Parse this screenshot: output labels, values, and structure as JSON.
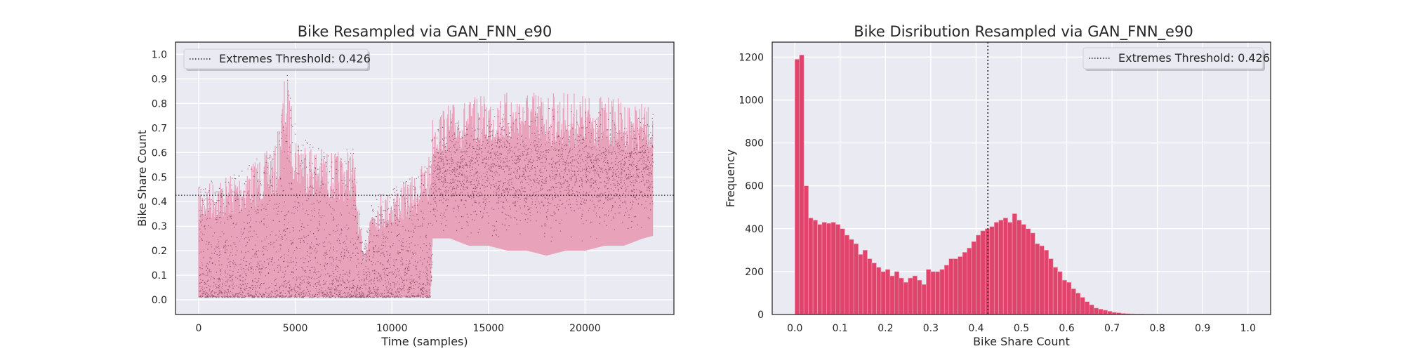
{
  "colors": {
    "axes_bg": "#EAEAF2",
    "grid": "#FFFFFF",
    "line_fill": "#E8A3BB",
    "dot": "#8A4866",
    "bar": "#E0436B",
    "bar_edge": "#F3A3B6",
    "threshold": "#222222"
  },
  "chart_data": [
    {
      "type": "line",
      "title": "Bike Resampled via GAN_FNN_e90",
      "xlabel": "Time (samples)",
      "ylabel": "Bike Share Count",
      "xlim": [
        -1200,
        24600
      ],
      "ylim": [
        -0.06,
        1.05
      ],
      "x_ticks": [
        0,
        5000,
        10000,
        15000,
        20000
      ],
      "x_tick_labels": [
        "0",
        "5000",
        "10000",
        "15000",
        "20000"
      ],
      "y_ticks": [
        0.0,
        0.1,
        0.2,
        0.3,
        0.4,
        0.5,
        0.6,
        0.7,
        0.8,
        0.9,
        1.0
      ],
      "y_tick_labels": [
        "0.0",
        "0.1",
        "0.2",
        "0.3",
        "0.4",
        "0.5",
        "0.6",
        "0.7",
        "0.8",
        "0.9",
        "1.0"
      ],
      "grid": true,
      "legend": {
        "position": "upper-left",
        "entries": [
          "Extremes Threshold: 0.426"
        ]
      },
      "threshold": {
        "orientation": "horizontal",
        "value": 0.426,
        "style": "dotted"
      },
      "series_envelope": {
        "x": [
          0,
          1000,
          2000,
          3000,
          4000,
          4500,
          5000,
          6000,
          7000,
          8000,
          8500,
          9000,
          10000,
          11000,
          12000,
          12100,
          13000,
          14000,
          15000,
          16000,
          17000,
          18000,
          19000,
          20000,
          21000,
          22000,
          23000,
          23500
        ],
        "upper": [
          0.46,
          0.5,
          0.52,
          0.58,
          0.63,
          0.95,
          0.7,
          0.63,
          0.6,
          0.62,
          0.2,
          0.42,
          0.45,
          0.5,
          0.6,
          0.75,
          0.8,
          0.82,
          0.84,
          0.85,
          0.86,
          0.85,
          0.85,
          0.84,
          0.83,
          0.82,
          0.8,
          0.78
        ],
        "lower": [
          0.01,
          0.01,
          0.01,
          0.01,
          0.01,
          0.01,
          0.01,
          0.01,
          0.01,
          0.01,
          0.01,
          0.01,
          0.01,
          0.01,
          0.01,
          0.25,
          0.25,
          0.22,
          0.22,
          0.2,
          0.2,
          0.18,
          0.2,
          0.2,
          0.22,
          0.22,
          0.25,
          0.26
        ]
      }
    },
    {
      "type": "bar",
      "title": "Bike Disribution Resampled via GAN_FNN_e90",
      "xlabel": "Bike Share Count",
      "ylabel": "Frequency",
      "xlim": [
        -0.05,
        1.05
      ],
      "ylim": [
        0,
        1270
      ],
      "x_ticks": [
        0.0,
        0.1,
        0.2,
        0.3,
        0.4,
        0.5,
        0.6,
        0.7,
        0.8,
        0.9,
        1.0
      ],
      "x_tick_labels": [
        "0.0",
        "0.1",
        "0.2",
        "0.3",
        "0.4",
        "0.5",
        "0.6",
        "0.7",
        "0.8",
        "0.9",
        "1.0"
      ],
      "y_ticks": [
        0,
        200,
        400,
        600,
        800,
        1000,
        1200
      ],
      "y_tick_labels": [
        "0",
        "200",
        "400",
        "600",
        "800",
        "1000",
        "1200"
      ],
      "grid": true,
      "legend": {
        "position": "upper-right",
        "entries": [
          "Extremes Threshold: 0.426"
        ]
      },
      "threshold": {
        "orientation": "vertical",
        "value": 0.426,
        "style": "dotted"
      },
      "bin_width": 0.01,
      "bin_start": 0.0,
      "values": [
        1190,
        1210,
        600,
        450,
        440,
        420,
        430,
        425,
        430,
        420,
        400,
        370,
        350,
        330,
        280,
        300,
        260,
        240,
        220,
        200,
        210,
        180,
        200,
        170,
        150,
        170,
        180,
        160,
        140,
        210,
        200,
        200,
        210,
        230,
        260,
        260,
        270,
        290,
        310,
        340,
        370,
        390,
        400,
        410,
        430,
        440,
        450,
        430,
        470,
        440,
        420,
        400,
        380,
        330,
        320,
        300,
        260,
        220,
        200,
        160,
        150,
        120,
        100,
        80,
        60,
        45,
        30,
        25,
        20,
        15,
        10,
        8,
        5,
        4,
        3,
        2,
        2,
        1,
        1,
        1,
        1,
        0,
        0,
        0,
        0,
        0,
        0,
        0,
        0,
        0,
        0,
        0,
        0,
        0,
        0,
        0,
        0,
        0,
        0,
        0,
        0
      ]
    }
  ]
}
